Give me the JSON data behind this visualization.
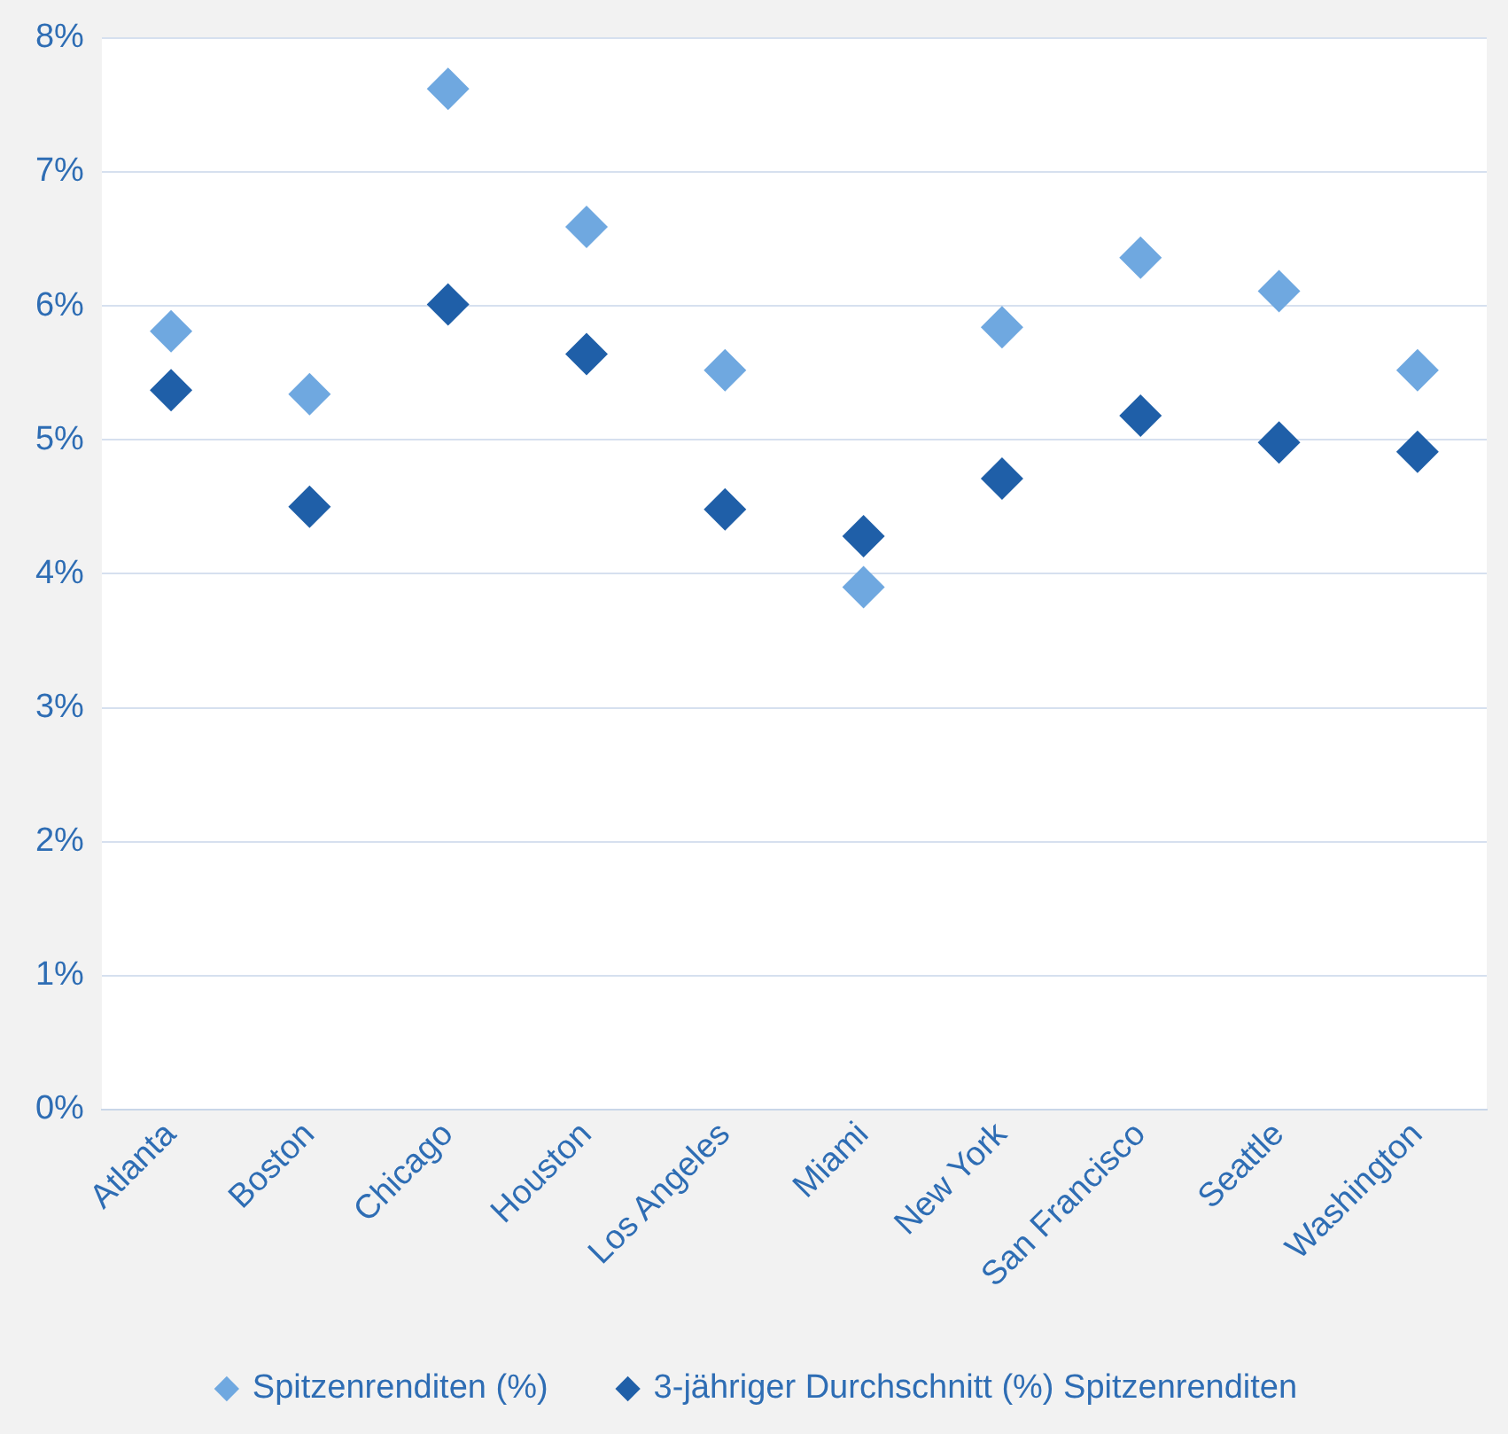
{
  "chart_data": {
    "type": "scatter",
    "categories": [
      "Atlanta",
      "Boston",
      "Chicago",
      "Houston",
      "Los Angeles",
      "Miami",
      "New York",
      "San Francisco",
      "Seattle",
      "Washington"
    ],
    "series": [
      {
        "name": "Spitzenrenditen (%)",
        "color": "#6fa8e0",
        "values": [
          5.81,
          5.34,
          7.62,
          6.59,
          5.52,
          3.9,
          5.84,
          6.36,
          6.11,
          5.52
        ]
      },
      {
        "name": "3-jähriger Durchschnitt (%) Spitzenrenditen",
        "color": "#1f5fa8",
        "values": [
          5.37,
          4.5,
          6.01,
          5.64,
          4.48,
          4.28,
          4.71,
          5.18,
          4.98,
          4.91
        ]
      }
    ],
    "ylim": [
      0,
      8
    ],
    "yticks": [
      {
        "value": 0,
        "label": "0%"
      },
      {
        "value": 1,
        "label": "1%"
      },
      {
        "value": 2,
        "label": "2%"
      },
      {
        "value": 3,
        "label": "3%"
      },
      {
        "value": 4,
        "label": "4%"
      },
      {
        "value": 5,
        "label": "5%"
      },
      {
        "value": 6,
        "label": "6%"
      },
      {
        "value": 7,
        "label": "7%"
      },
      {
        "value": 8,
        "label": "8%"
      }
    ],
    "grid": "y",
    "legend": "bottom",
    "marker": "diamond"
  }
}
